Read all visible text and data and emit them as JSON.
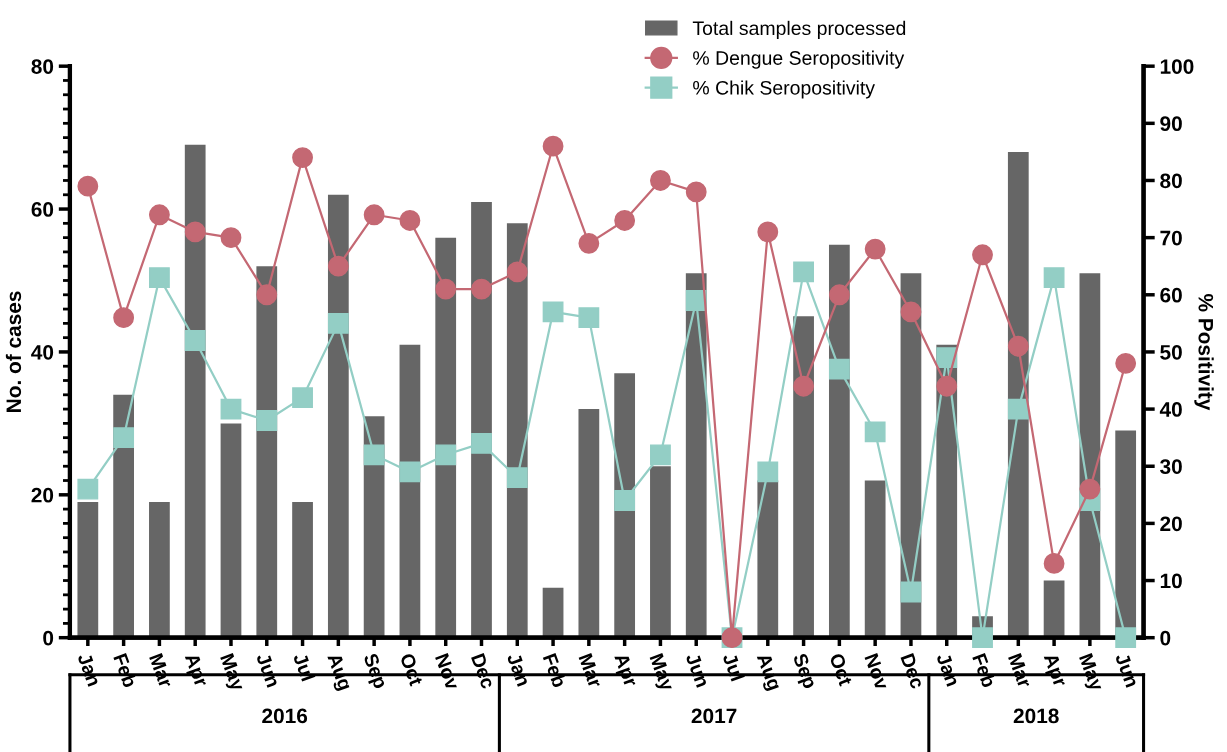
{
  "chart_data": {
    "type": "bar",
    "categories": [
      "Jan",
      "Feb",
      "Mar",
      "Apr",
      "May",
      "Jun",
      "Jul",
      "Aug",
      "Sep",
      "Oct",
      "Nov",
      "Dec",
      "Jan",
      "Feb",
      "Mar",
      "Apr",
      "May",
      "Jun",
      "Jul",
      "Aug",
      "Sep",
      "Oct",
      "Nov",
      "Dec",
      "Jan",
      "Feb",
      "Mar",
      "Apr",
      "May",
      "Jun"
    ],
    "series": [
      {
        "name": "Total samples processed",
        "color": "#666666",
        "values": [
          19,
          34,
          19,
          69,
          30,
          52,
          19,
          62,
          31,
          41,
          56,
          61,
          58,
          7,
          32,
          37,
          24,
          51,
          null,
          22,
          45,
          55,
          22,
          51,
          41,
          3,
          68,
          8,
          51,
          29
        ]
      },
      {
        "name": "% Dengue Seropositivity",
        "type": "line",
        "axis": "y2",
        "marker": "circle",
        "color": "#c46873",
        "values": [
          79,
          56,
          74,
          71,
          70,
          60,
          84,
          65,
          74,
          73,
          61,
          61,
          64,
          86,
          69,
          73,
          80,
          78,
          0,
          71,
          44,
          60,
          68,
          57,
          44,
          67,
          51,
          13,
          26,
          48
        ]
      },
      {
        "name": "% Chik Seropositivity",
        "type": "line",
        "axis": "y2",
        "marker": "square",
        "color": "#93cec5",
        "values": [
          26,
          35,
          63,
          52,
          40,
          38,
          42,
          55,
          32,
          29,
          32,
          34,
          28,
          57,
          56,
          24,
          32,
          59,
          0,
          29,
          64,
          47,
          36,
          8,
          49,
          0,
          40,
          63,
          24,
          0
        ]
      }
    ],
    "ylabel": "No. of cases",
    "y2label": "% Positivity",
    "ylim": [
      0,
      80
    ],
    "yticks": [
      0,
      20,
      40,
      60,
      80
    ],
    "y2lim": [
      0,
      100
    ],
    "y2ticks": [
      0,
      10,
      20,
      30,
      40,
      50,
      60,
      70,
      80,
      90,
      100
    ],
    "annotations": [
      "2016",
      "2017",
      "2018"
    ],
    "legend": "top",
    "grid": false
  }
}
